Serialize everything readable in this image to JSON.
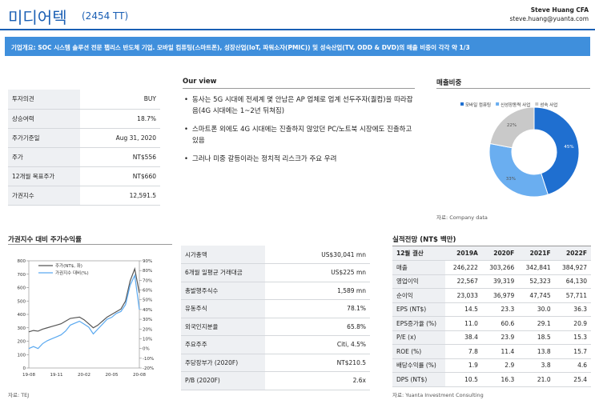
{
  "header": {
    "title": "미디어텍",
    "ticker": "(2454 TT)",
    "analyst": "Steve Huang CFA",
    "email": "steve.huang@yuanta.com"
  },
  "summary": "기업개요: SOC 시스템 솔루션 전문 팹리스 반도체 기업. 모바일 컴퓨팅(스마트폰), 성장산업(IoT, 파워소자(PMIC)) 및 성숙산업(TV, ODD & DVD)의 매출 비중이 각각 약 1/3",
  "investment_table": {
    "rows": [
      [
        "투자의견",
        "BUY"
      ],
      [
        "상승여력",
        "18.7%"
      ],
      [
        "주가기준일",
        "Aug 31, 2020"
      ],
      [
        "주가",
        "NT$556"
      ],
      [
        "12개월 목표주가",
        "NT$660"
      ],
      [
        "가권지수",
        "12,591.5"
      ]
    ]
  },
  "our_view": {
    "title": "Our view",
    "bullets": [
      "동사는 5G 시대에 전세계 몇 안남은 AP 업체로 업계 선두주자(퀄컴)을 따라잡음(4G 시대에는 1~2년 뒤쳐짐)",
      "스마트폰 외에도 4G 시대에는 진출하지 않았던 PC/노트북 시장에도 진출하고 있음",
      "그러나 미중 갈등이라는 정치적 리스크가 주요 우려"
    ]
  },
  "sales_mix": {
    "title": "매출비중",
    "source": "자료: Company data",
    "chart_data": {
      "type": "pie",
      "categories": [
        "모바일 컴퓨팅",
        "신성장동력 사업",
        "성숙 사업"
      ],
      "values": [
        45,
        33,
        22
      ],
      "value_labels": [
        "45%",
        "33%",
        "22%"
      ],
      "colors": [
        "#1f6fd0",
        "#6aaef0",
        "#c9c9c9"
      ]
    }
  },
  "stock_chart": {
    "title": "가권지수 대비 주가수익률",
    "source": "자료: TEJ",
    "chart_data": {
      "type": "line",
      "categories": [
        "19-08",
        null,
        null,
        null,
        null,
        null,
        "19-11",
        null,
        null,
        null,
        null,
        null,
        "20-02",
        null,
        null,
        null,
        null,
        null,
        "20-05",
        null,
        null,
        null,
        null,
        null,
        "20-08"
      ],
      "series": [
        {
          "name": "주가(NT$, 좌)",
          "color": "#555555",
          "values": [
            270,
            280,
            275,
            290,
            300,
            310,
            320,
            330,
            350,
            370,
            375,
            380,
            360,
            330,
            300,
            320,
            350,
            380,
            400,
            420,
            440,
            500,
            650,
            740,
            560
          ]
        },
        {
          "name": "가권지수 대비(%)",
          "color": "#5aa9f0",
          "axis": "y2",
          "values": [
            0,
            2,
            0,
            5,
            8,
            10,
            12,
            14,
            18,
            24,
            26,
            28,
            25,
            22,
            15,
            20,
            25,
            30,
            32,
            36,
            38,
            45,
            65,
            75,
            40
          ]
        }
      ],
      "ylim": [
        0,
        800
      ],
      "yticks": [
        0,
        100,
        200,
        300,
        400,
        500,
        600,
        700,
        800
      ],
      "y2lim": [
        -20,
        90
      ],
      "y2ticks": [
        {
          "value": -20,
          "label": "-20%"
        },
        {
          "value": -10,
          "label": "-10%"
        },
        {
          "value": 0,
          "label": "0%"
        },
        {
          "value": 10,
          "label": "10%"
        },
        {
          "value": 20,
          "label": "20%"
        },
        {
          "value": 30,
          "label": "30%"
        },
        {
          "value": 40,
          "label": "40%"
        },
        {
          "value": 50,
          "label": "50%"
        },
        {
          "value": 60,
          "label": "60%"
        },
        {
          "value": 70,
          "label": "70%"
        },
        {
          "value": 80,
          "label": "80%"
        },
        {
          "value": 90,
          "label": "90%"
        }
      ]
    }
  },
  "market_table": {
    "rows": [
      [
        "시가총액",
        "US$30,041 mn"
      ],
      [
        "6개월 일평균 거래대금",
        "US$225 mn"
      ],
      [
        "총발행주식수",
        "1,589 mn"
      ],
      [
        "유동주식",
        "78.1%"
      ],
      [
        "외국인지분율",
        "65.8%"
      ],
      [
        "주요주주",
        "Citi, 4.5%"
      ],
      [
        "주당장부가 (2020F)",
        "NT$210.5"
      ],
      [
        "P/B (2020F)",
        "2.6x"
      ]
    ]
  },
  "forecast": {
    "title": "실적전망 (NT$ 백만)",
    "source": "자료: Yuanta Investment Consulting",
    "header": [
      "12월 결산",
      "2019A",
      "2020F",
      "2021F",
      "2022F"
    ],
    "rows": [
      [
        "매출",
        "246,222",
        "303,266",
        "342,841",
        "384,927"
      ],
      [
        "영업이익",
        "22,567",
        "39,319",
        "52,323",
        "64,130"
      ],
      [
        "순이익",
        "23,033",
        "36,979",
        "47,745",
        "57,711"
      ],
      [
        "EPS (NT$)",
        "14.5",
        "23.3",
        "30.0",
        "36.3"
      ],
      [
        "EPS증가율 (%)",
        "11.0",
        "60.6",
        "29.1",
        "20.9"
      ],
      [
        "P/E (x)",
        "38.4",
        "23.9",
        "18.5",
        "15.3"
      ],
      [
        "ROE (%)",
        "7.8",
        "11.4",
        "13.8",
        "15.7"
      ],
      [
        "배당수익률 (%)",
        "1.9",
        "2.9",
        "3.8",
        "4.6"
      ],
      [
        "DPS (NT$)",
        "10.5",
        "16.3",
        "21.0",
        "25.4"
      ]
    ]
  }
}
